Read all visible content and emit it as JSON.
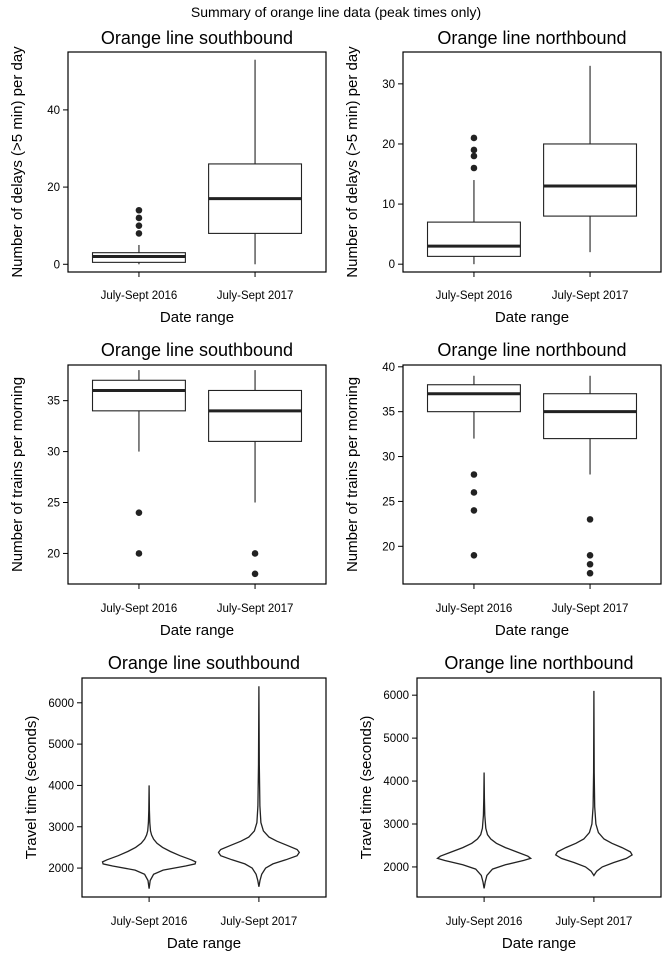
{
  "figure_title": "Summary of orange line data (peak times only)",
  "chart_data": [
    {
      "type": "box",
      "title": "Orange line southbound",
      "xlabel": "Date range",
      "ylabel": "Number of delays (>5 min) per day",
      "categories": [
        "July-Sept 2016",
        "July-Sept 2017"
      ],
      "ylim": [
        -2,
        55
      ],
      "yticks": [
        0,
        20,
        40
      ],
      "boxes": [
        {
          "min": 0,
          "q1": 0.5,
          "median": 2,
          "q3": 3,
          "max": 5,
          "outliers": [
            8,
            10,
            12,
            14
          ]
        },
        {
          "min": 0,
          "q1": 8,
          "median": 17,
          "q3": 26,
          "max": 53,
          "outliers": []
        }
      ]
    },
    {
      "type": "box",
      "title": "Orange line northbound",
      "xlabel": "Date range",
      "ylabel": "Number of delays (>5 min) per day",
      "categories": [
        "July-Sept 2016",
        "July-Sept 2017"
      ],
      "ylim": [
        -1.3,
        35.3
      ],
      "yticks": [
        0,
        10,
        20,
        30
      ],
      "boxes": [
        {
          "min": 0,
          "q1": 1.3,
          "median": 3,
          "q3": 7,
          "max": 14,
          "outliers": [
            16,
            18,
            19,
            21
          ]
        },
        {
          "min": 2,
          "q1": 8,
          "median": 13,
          "q3": 20,
          "max": 33,
          "outliers": []
        }
      ]
    },
    {
      "type": "box",
      "title": "Orange line southbound",
      "xlabel": "Date range",
      "ylabel": "Number of trains per morning",
      "categories": [
        "July-Sept 2016",
        "July-Sept 2017"
      ],
      "ylim": [
        17,
        38.5
      ],
      "yticks": [
        20,
        25,
        30,
        35
      ],
      "boxes": [
        {
          "min": 30,
          "q1": 34,
          "median": 36,
          "q3": 37,
          "max": 38,
          "outliers": [
            24,
            20
          ]
        },
        {
          "min": 25,
          "q1": 31,
          "median": 34,
          "q3": 36,
          "max": 38,
          "outliers": [
            20,
            18
          ]
        }
      ]
    },
    {
      "type": "box",
      "title": "Orange line northbound",
      "xlabel": "Date range",
      "ylabel": "Number of trains per morning",
      "categories": [
        "July-Sept 2016",
        "July-Sept 2017"
      ],
      "ylim": [
        15.8,
        40.2
      ],
      "yticks": [
        20,
        25,
        30,
        35,
        40
      ],
      "boxes": [
        {
          "min": 32,
          "q1": 35,
          "median": 37,
          "q3": 38,
          "max": 39,
          "outliers": [
            28,
            26,
            24,
            19
          ]
        },
        {
          "min": 28,
          "q1": 32,
          "median": 35,
          "q3": 37,
          "max": 39,
          "outliers": [
            23,
            19,
            18,
            17
          ]
        }
      ]
    },
    {
      "type": "violin",
      "title": "Orange line southbound",
      "xlabel": "Date range",
      "ylabel": "Travel time (seconds)",
      "categories": [
        "July-Sept 2016",
        "July-Sept 2017"
      ],
      "ylim": [
        1300,
        6600
      ],
      "yticks": [
        2000,
        3000,
        4000,
        5000,
        6000
      ],
      "violins": [
        {
          "category": "July-Sept 2016",
          "profile": [
            [
              1500,
              0
            ],
            [
              1700,
              0.02
            ],
            [
              1850,
              0.08
            ],
            [
              1950,
              0.25
            ],
            [
              2050,
              0.65
            ],
            [
              2100,
              0.82
            ],
            [
              2150,
              0.83
            ],
            [
              2200,
              0.75
            ],
            [
              2300,
              0.55
            ],
            [
              2400,
              0.38
            ],
            [
              2500,
              0.24
            ],
            [
              2600,
              0.14
            ],
            [
              2700,
              0.08
            ],
            [
              2800,
              0.045
            ],
            [
              2900,
              0.025
            ],
            [
              3100,
              0.012
            ],
            [
              3400,
              0.006
            ],
            [
              4000,
              0
            ]
          ]
        },
        {
          "category": "July-Sept 2017",
          "profile": [
            [
              1550,
              0
            ],
            [
              1700,
              0.02
            ],
            [
              1850,
              0.05
            ],
            [
              2000,
              0.12
            ],
            [
              2100,
              0.25
            ],
            [
              2200,
              0.48
            ],
            [
              2300,
              0.68
            ],
            [
              2380,
              0.72
            ],
            [
              2450,
              0.68
            ],
            [
              2550,
              0.5
            ],
            [
              2650,
              0.32
            ],
            [
              2750,
              0.18
            ],
            [
              2900,
              0.08
            ],
            [
              3100,
              0.035
            ],
            [
              3500,
              0.018
            ],
            [
              4500,
              0.008
            ],
            [
              6400,
              0
            ]
          ]
        }
      ]
    },
    {
      "type": "violin",
      "title": "Orange line northbound",
      "xlabel": "Date range",
      "ylabel": "Travel time (seconds)",
      "categories": [
        "July-Sept 2016",
        "July-Sept 2017"
      ],
      "ylim": [
        1300,
        6400
      ],
      "yticks": [
        2000,
        3000,
        4000,
        5000,
        6000
      ],
      "violins": [
        {
          "category": "July-Sept 2016",
          "profile": [
            [
              1500,
              0
            ],
            [
              1650,
              0.02
            ],
            [
              1800,
              0.05
            ],
            [
              1950,
              0.15
            ],
            [
              2050,
              0.38
            ],
            [
              2150,
              0.7
            ],
            [
              2200,
              0.83
            ],
            [
              2250,
              0.78
            ],
            [
              2350,
              0.58
            ],
            [
              2450,
              0.38
            ],
            [
              2550,
              0.22
            ],
            [
              2650,
              0.12
            ],
            [
              2750,
              0.06
            ],
            [
              2900,
              0.03
            ],
            [
              3200,
              0.012
            ],
            [
              3600,
              0.006
            ],
            [
              4200,
              0
            ]
          ]
        },
        {
          "category": "July-Sept 2017",
          "profile": [
            [
              1800,
              0
            ],
            [
              1900,
              0.05
            ],
            [
              2000,
              0.15
            ],
            [
              2100,
              0.35
            ],
            [
              2200,
              0.58
            ],
            [
              2280,
              0.68
            ],
            [
              2350,
              0.65
            ],
            [
              2450,
              0.5
            ],
            [
              2550,
              0.32
            ],
            [
              2650,
              0.18
            ],
            [
              2800,
              0.08
            ],
            [
              3000,
              0.035
            ],
            [
              3400,
              0.015
            ],
            [
              4200,
              0.006
            ],
            [
              6100,
              0
            ]
          ]
        }
      ]
    }
  ]
}
